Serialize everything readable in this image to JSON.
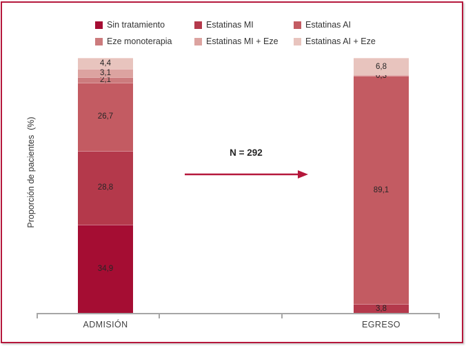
{
  "chart_data": {
    "type": "bar",
    "stacked": true,
    "title": "",
    "ylabel": "Proporción de pacientes  (%)",
    "categories": [
      "ADMISIÓN",
      "EGRESO"
    ],
    "ylim": [
      0,
      100
    ],
    "grid": false,
    "legend_position": "top-center",
    "decimal_separator": ",",
    "series": [
      {
        "name": "Sin tratamiento",
        "color": "#A50D33",
        "values": [
          34.9,
          0
        ],
        "labels": [
          "34,9",
          ""
        ]
      },
      {
        "name": "Estatinas MI",
        "color": "#B4394B",
        "values": [
          28.8,
          3.8
        ],
        "labels": [
          "28,8",
          "3,8"
        ]
      },
      {
        "name": "Estatinas AI",
        "color": "#C35B62",
        "values": [
          26.7,
          89.1
        ],
        "labels": [
          "26,7",
          "89,1"
        ]
      },
      {
        "name": "Eze monoterapia",
        "color": "#CC7B7D",
        "values": [
          2.1,
          0.3
        ],
        "labels": [
          "2,1",
          "0,3"
        ]
      },
      {
        "name": "Estatinas MI + Eze",
        "color": "#DCA3A0",
        "values": [
          3.1,
          0
        ],
        "labels": [
          "3,1",
          ""
        ]
      },
      {
        "name": "Estatinas AI + Eze",
        "color": "#E8C4BE",
        "values": [
          4.4,
          6.8
        ],
        "labels": [
          "4,4",
          "6,8"
        ]
      }
    ],
    "annotation": {
      "text": "N = 292"
    },
    "accent_color": "#B5173B",
    "axis_color": "#A6A6A6",
    "frame_color": "#B5173B"
  }
}
